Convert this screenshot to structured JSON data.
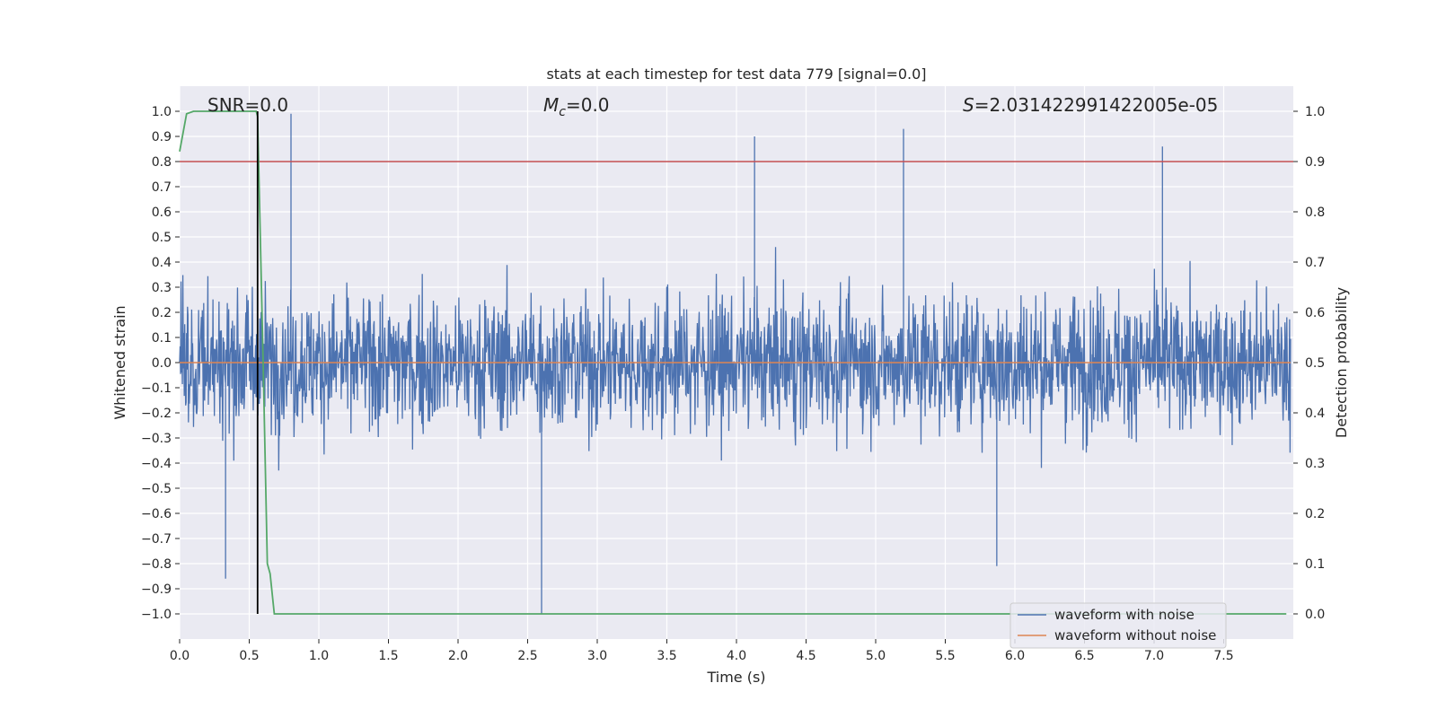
{
  "chart_data": {
    "type": "line",
    "title": "stats at each timestep for test data 779 [signal=0.0]",
    "xlabel": "Time (s)",
    "ylabel": "Whitened strain",
    "ylabel_right": "Detection probability",
    "xlim": [
      0.0,
      8.0
    ],
    "ylim": [
      -1.1,
      1.1
    ],
    "ylim_right": [
      -0.05,
      1.05
    ],
    "x_ticks": [
      "0.0",
      "0.5",
      "1.0",
      "1.5",
      "2.0",
      "2.5",
      "3.0",
      "3.5",
      "4.0",
      "4.5",
      "5.0",
      "5.5",
      "6.0",
      "6.5",
      "7.0",
      "7.5"
    ],
    "y_ticks": [
      "1.0",
      "0.9",
      "0.8",
      "0.7",
      "0.6",
      "0.5",
      "0.4",
      "0.3",
      "0.2",
      "0.1",
      "0.0",
      "−0.1",
      "−0.2",
      "−0.3",
      "−0.4",
      "−0.5",
      "−0.6",
      "−0.7",
      "−0.8",
      "−0.9",
      "−1.0"
    ],
    "y_right_ticks": [
      "1.0",
      "0.9",
      "0.8",
      "0.7",
      "0.6",
      "0.5",
      "0.4",
      "0.3",
      "0.2",
      "0.1",
      "0.0"
    ],
    "grid": true,
    "annotations": {
      "snr": "SNR=0.0",
      "mc_symbol": "M",
      "mc_sub": "c",
      "mc_value": "=0.0",
      "s_symbol": "S",
      "s_value": "=2.031422991422005e-05"
    },
    "legend": {
      "position": "lower-right",
      "entries": [
        "waveform with noise",
        "waveform without noise"
      ]
    },
    "colors": {
      "noise": "#4c72b0",
      "clean": "#dd8452",
      "probability": "#55a868",
      "threshold": "#c44e52",
      "marker": "#000000",
      "background": "#eaeaf2"
    },
    "series": [
      {
        "name": "waveform with noise",
        "description_range": [
          -1.0,
          0.99
        ],
        "peaks": [
          {
            "x": 0.8,
            "y": 0.99
          },
          {
            "x": 2.6,
            "y": -1.0
          },
          {
            "x": 4.13,
            "y": 0.9
          },
          {
            "x": 5.2,
            "y": 0.93
          },
          {
            "x": 0.33,
            "y": -0.86
          },
          {
            "x": 5.87,
            "y": -0.81
          },
          {
            "x": 7.06,
            "y": 0.86
          }
        ]
      },
      {
        "name": "waveform without noise",
        "value": 0.0
      },
      {
        "name": "detection probability",
        "axis": "right",
        "x": [
          0.0,
          0.05,
          0.1,
          0.2,
          0.3,
          0.4,
          0.5,
          0.55,
          0.56,
          0.6,
          0.63,
          0.65,
          0.68,
          7.95
        ],
        "y": [
          0.92,
          0.995,
          1.0,
          1.0,
          1.0,
          1.0,
          1.0,
          1.0,
          0.99,
          0.5,
          0.1,
          0.08,
          0.0,
          0.0
        ]
      }
    ],
    "threshold": {
      "axis": "right",
      "value": 0.9
    },
    "marker_line": {
      "x": 0.56,
      "y_from": -1.0,
      "y_to": 1.0
    }
  }
}
